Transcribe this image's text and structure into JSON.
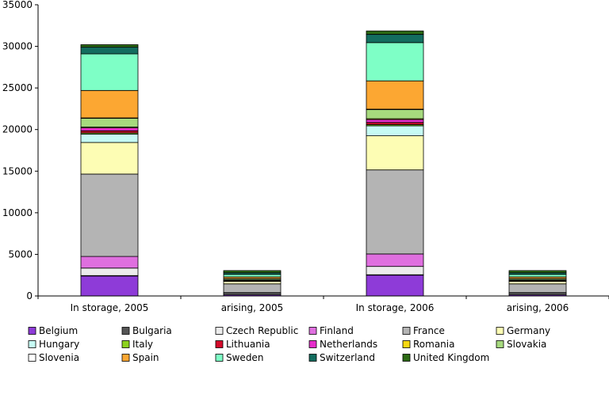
{
  "chart_data": {
    "type": "bar",
    "stacked": true,
    "categories": [
      "In storage, 2005",
      "arising, 2005",
      "In storage, 2006",
      "arising, 2006"
    ],
    "ylim": [
      0,
      35000
    ],
    "yticks": [
      0,
      5000,
      10000,
      15000,
      20000,
      25000,
      30000,
      35000
    ],
    "grid": false,
    "legend_position": "bottom",
    "series": [
      {
        "name": "Belgium",
        "color": "#8e3bd8",
        "values": [
          2400,
          150,
          2500,
          150
        ]
      },
      {
        "name": "Bulgaria",
        "color": "#555555",
        "values": [
          50,
          50,
          50,
          50
        ]
      },
      {
        "name": "Czech Republic",
        "color": "#ececec",
        "values": [
          900,
          150,
          1000,
          150
        ]
      },
      {
        "name": "Finland",
        "color": "#df6fdf",
        "values": [
          1400,
          50,
          1500,
          50
        ]
      },
      {
        "name": "France",
        "color": "#b4b4b4",
        "values": [
          9900,
          1050,
          10100,
          1050
        ]
      },
      {
        "name": "Germany",
        "color": "#fdfdb4",
        "values": [
          3800,
          300,
          4100,
          300
        ]
      },
      {
        "name": "Hungary",
        "color": "#c6fbf4",
        "values": [
          1000,
          50,
          1200,
          50
        ]
      },
      {
        "name": "Italy",
        "color": "#8cd21e",
        "values": [
          150,
          30,
          150,
          30
        ]
      },
      {
        "name": "Lithuania",
        "color": "#d40a2a",
        "values": [
          250,
          30,
          250,
          30
        ]
      },
      {
        "name": "Netherlands",
        "color": "#e62ccb",
        "values": [
          350,
          30,
          350,
          30
        ]
      },
      {
        "name": "Romania",
        "color": "#f7d812",
        "values": [
          100,
          30,
          100,
          30
        ]
      },
      {
        "name": "Slovakia",
        "color": "#a6d97e",
        "values": [
          1050,
          150,
          1100,
          150
        ]
      },
      {
        "name": "Slovenia",
        "color": "#ffffff",
        "values": [
          50,
          20,
          50,
          20
        ]
      },
      {
        "name": "Spain",
        "color": "#fca732",
        "values": [
          3300,
          200,
          3400,
          200
        ]
      },
      {
        "name": "Sweden",
        "color": "#7effc6",
        "values": [
          4400,
          300,
          4600,
          300
        ]
      },
      {
        "name": "Switzerland",
        "color": "#136d5f",
        "values": [
          800,
          200,
          1000,
          200
        ]
      },
      {
        "name": "United Kingdom",
        "color": "#2c6a14",
        "values": [
          300,
          260,
          400,
          260
        ]
      }
    ]
  }
}
